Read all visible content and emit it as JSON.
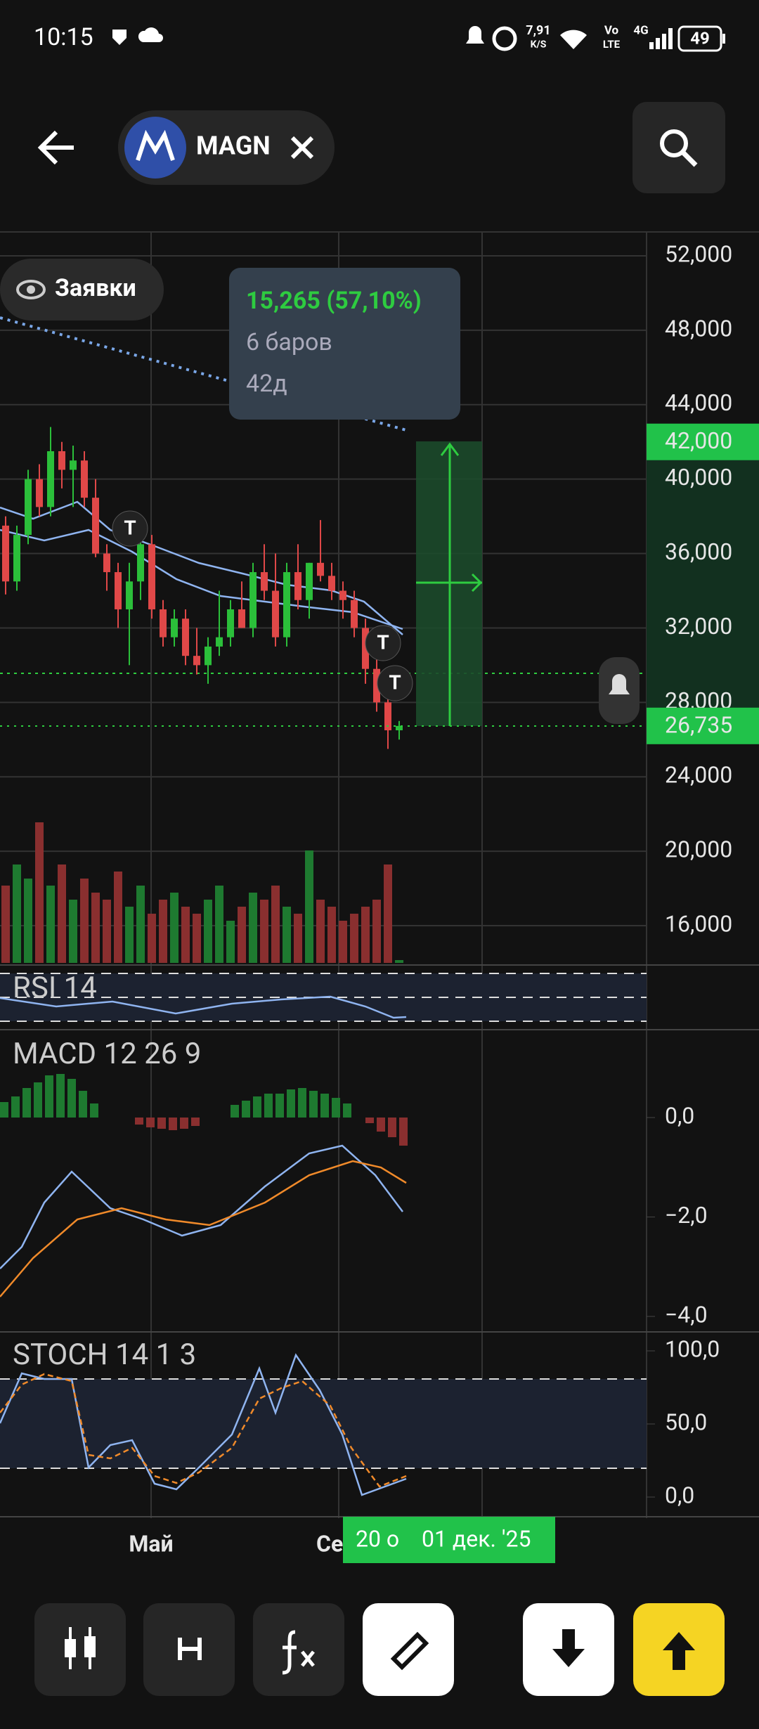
{
  "status_bar": {
    "time": "10:15",
    "speed": "7,91",
    "speed_unit": "K/S",
    "volte_top": "Vo",
    "volte_bottom": "LTE",
    "network": "4G",
    "battery": "49"
  },
  "header": {
    "ticker": "MAGN"
  },
  "chart": {
    "orders_button": "Заявки",
    "tooltip": {
      "change": "15,265 (57,10%)",
      "bars": "6 баров",
      "duration": "42д"
    },
    "price_ticks": [
      {
        "value": 52000,
        "label": "52,000"
      },
      {
        "value": 48000,
        "label": "48,000"
      },
      {
        "value": 44000,
        "label": "44,000"
      },
      {
        "value": 40000,
        "label": "40,000"
      },
      {
        "value": 36000,
        "label": "36,000"
      },
      {
        "value": 32000,
        "label": "32,000"
      },
      {
        "value": 28000,
        "label": "28,000"
      },
      {
        "value": 24000,
        "label": "24,000"
      },
      {
        "value": 20000,
        "label": "20,000"
      },
      {
        "value": 16000,
        "label": "16,000"
      }
    ],
    "target_price": {
      "value": 42000,
      "label": "42,000"
    },
    "current_price": {
      "value": 26735,
      "label": "26,735"
    },
    "candles": [
      [
        37500,
        38000,
        33800,
        34500
      ],
      [
        34500,
        37500,
        34000,
        37000
      ],
      [
        37000,
        40500,
        36500,
        40000
      ],
      [
        40000,
        40800,
        38000,
        38500
      ],
      [
        38500,
        42800,
        38000,
        41500
      ],
      [
        41500,
        42000,
        39500,
        40500
      ],
      [
        40500,
        41800,
        38500,
        41000
      ],
      [
        41000,
        41500,
        38500,
        39000
      ],
      [
        39000,
        40000,
        35800,
        36000
      ],
      [
        36000,
        36500,
        34000,
        35000
      ],
      [
        35000,
        35500,
        32000,
        33000
      ],
      [
        33000,
        35500,
        30000,
        34500
      ],
      [
        34500,
        37000,
        33500,
        36500
      ],
      [
        36500,
        37000,
        32500,
        33000
      ],
      [
        33000,
        33500,
        31000,
        31500
      ],
      [
        31500,
        33000,
        31000,
        32500
      ],
      [
        32500,
        33000,
        30000,
        30500
      ],
      [
        30500,
        32000,
        29500,
        30000
      ],
      [
        30000,
        31500,
        29000,
        31000
      ],
      [
        31000,
        34000,
        30500,
        31500
      ],
      [
        31500,
        33500,
        31000,
        33000
      ],
      [
        33000,
        34500,
        32000,
        32000
      ],
      [
        32000,
        35500,
        31500,
        35000
      ],
      [
        35000,
        36500,
        33500,
        34000
      ],
      [
        34000,
        36000,
        31000,
        31500
      ],
      [
        31500,
        35500,
        31000,
        35000
      ],
      [
        35000,
        36500,
        33000,
        33500
      ],
      [
        33500,
        35500,
        32500,
        35500
      ],
      [
        35500,
        37800,
        34500,
        34800
      ],
      [
        34800,
        35500,
        33500,
        34000
      ],
      [
        34000,
        34500,
        32500,
        33500
      ],
      [
        33500,
        34000,
        31500,
        32000
      ],
      [
        32000,
        32500,
        29000,
        29800
      ],
      [
        29800,
        30500,
        27500,
        28000
      ],
      [
        28000,
        28500,
        25500,
        26500
      ],
      [
        26500,
        27000,
        26000,
        26735
      ]
    ],
    "volume": [
      55,
      70,
      60,
      100,
      55,
      70,
      45,
      60,
      50,
      45,
      65,
      40,
      55,
      35,
      45,
      50,
      40,
      35,
      45,
      55,
      30,
      40,
      50,
      45,
      55,
      40,
      35,
      80,
      45,
      40,
      30,
      35,
      40,
      45,
      70,
      2
    ]
  },
  "indicators": {
    "rsi": "RSI 14",
    "macd": {
      "label": "MACD 12 26 9",
      "ticks": [
        {
          "value": 0,
          "label": "0,0"
        },
        {
          "value": -2,
          "label": "−2,0"
        },
        {
          "value": -4,
          "label": "−4,0"
        }
      ]
    },
    "stoch": {
      "label": "STOCH 14 1 3",
      "ticks": [
        {
          "value": 100,
          "label": "100,0"
        },
        {
          "value": 50,
          "label": "50,0"
        },
        {
          "value": 0,
          "label": "0,0"
        }
      ]
    }
  },
  "x_labels": [
    "Май",
    "Се"
  ],
  "crosshair_labels": [
    "20 о",
    "01 дек. '25"
  ]
}
